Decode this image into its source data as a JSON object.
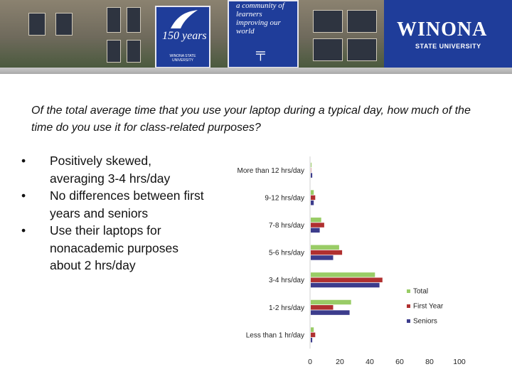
{
  "banner": {
    "flag_left": {
      "years_text": "150 years",
      "fine_print": "WINONA STATE UNIVERSITY"
    },
    "flag_right": {
      "motto": "a community of learners improving our world",
      "emblem": "╤"
    },
    "logo": {
      "name": "WINONA",
      "subtitle": "STATE UNIVERSITY",
      "panel_color": "#1f3d9a"
    }
  },
  "slide": {
    "question": "Of the total average time that you use your laptop during a typical day, how much of the time do you use it for class-related purposes?",
    "bullet_glyph": "•",
    "bullets": [
      "Positively skewed, averaging 3-4 hrs/day",
      "No differences between first years and seniors",
      "Use their laptops for nonacademic purposes about 2 hrs/day"
    ]
  },
  "chart_data": {
    "type": "bar",
    "orientation": "horizontal",
    "categories": [
      "More than 12 hrs/day",
      "9-12 hrs/day",
      "7-8 hrs/day",
      "5-6 hrs/day",
      "3-4 hrs/day",
      "1-2 hrs/day",
      "Less than 1 hr/day"
    ],
    "series": [
      {
        "name": "Total",
        "color": "#99cc66",
        "values": [
          0.5,
          2,
          7,
          19,
          43,
          27,
          2
        ]
      },
      {
        "name": "First Year",
        "color": "#b03030",
        "values": [
          0.2,
          3,
          9,
          21,
          48,
          15,
          3
        ]
      },
      {
        "name": "Seniors",
        "color": "#3c3c8c",
        "values": [
          1,
          2,
          6,
          15,
          46,
          26,
          1
        ]
      }
    ],
    "xlim": [
      0,
      100
    ],
    "xticks": [
      0,
      20,
      40,
      60,
      80,
      100
    ],
    "grid": false,
    "legend_position": "right"
  }
}
